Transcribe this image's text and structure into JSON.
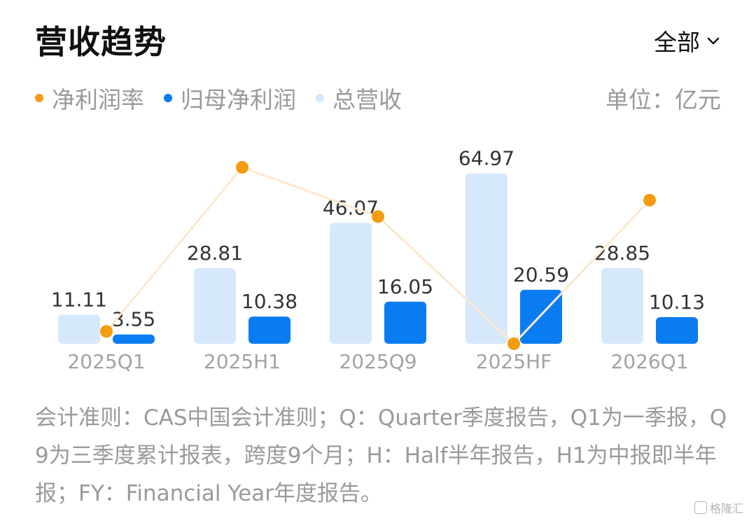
{
  "header": {
    "title": "营收趋势",
    "filter_label": "全部"
  },
  "legend": {
    "items": [
      {
        "label": "净利润率",
        "color": "#f39c12"
      },
      {
        "label": "归母净利润",
        "color": "#0a7cf2"
      },
      {
        "label": "总营收",
        "color": "#d6e8fb"
      }
    ]
  },
  "unit": "单位：亿元",
  "chart_data": {
    "type": "bar",
    "categories": [
      "2025Q1",
      "2025H1",
      "2025Q9",
      "2025HF",
      "2026Q1"
    ],
    "series": [
      {
        "name": "总营收",
        "kind": "bar",
        "values": [
          11.11,
          28.81,
          46.07,
          64.97,
          28.85
        ],
        "labels": [
          "11.11",
          "28.81",
          "46.07",
          "64.97",
          "28.85"
        ]
      },
      {
        "name": "归母净利润",
        "kind": "bar",
        "values": [
          3.55,
          10.38,
          16.05,
          20.59,
          10.13
        ],
        "labels": [
          "3.55",
          "10.38",
          "16.05",
          "20.59",
          "10.13"
        ]
      },
      {
        "name": "净利润率",
        "kind": "line",
        "values": [
          32.0,
          36.0,
          34.8,
          31.7,
          35.2
        ]
      }
    ],
    "colors": {
      "revenue": "#d6e8fb",
      "profit": "#0a7cf2",
      "margin": "#f39c12",
      "margin_line": "#fde9cd"
    },
    "ylim": [
      0,
      67
    ]
  },
  "footnote": "会计准则：CAS中国会计准则；Q：Quarter季度报告，Q1为一季报，Q9为三季度累计报表，跨度9个月；H：Half半年报告，H1为中报即半年报；FY：Financial Year年度报告。",
  "watermark": "格隆汇"
}
